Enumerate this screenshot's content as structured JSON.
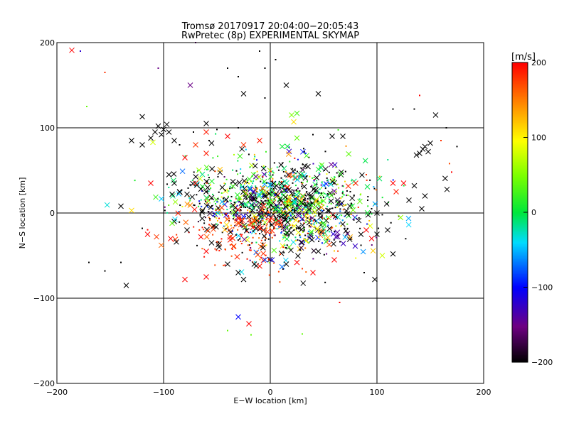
{
  "chart_data": {
    "type": "scatter",
    "title": "Tromsø 20170917 20:04:00−20:05:43",
    "subtitle": "RwPretec (8p) EXPERIMENTAL SKYMAP",
    "xlabel": "E−W location [km]",
    "ylabel": "N−S location [km]",
    "xlim": [
      -200,
      200
    ],
    "ylim": [
      -200,
      200
    ],
    "xticks": [
      -200,
      -100,
      0,
      100,
      200
    ],
    "yticks": [
      -200,
      -100,
      0,
      100,
      200
    ],
    "xtick_labels": [
      "−200",
      "−100",
      "0",
      "100",
      "200"
    ],
    "ytick_labels": [
      "−200",
      "−100",
      "0",
      "100",
      "200"
    ],
    "grid": true,
    "colorbar": {
      "label": "[m/s]",
      "min": -200,
      "max": 200,
      "ticks": [
        -200,
        -100,
        0,
        100,
        200
      ],
      "tick_labels": [
        "−200",
        "−100",
        "0",
        "100",
        "200"
      ],
      "colormap": "rainbow",
      "low_color": "#000000",
      "high_color": "#ff0000"
    },
    "markers": [
      "x",
      "dot"
    ],
    "points": [
      {
        "x": -186,
        "y": 191,
        "v": 200,
        "m": "x"
      },
      {
        "x": -178,
        "y": 190,
        "v": -120,
        "m": "dot"
      },
      {
        "x": -155,
        "y": 165,
        "v": 180,
        "m": "dot"
      },
      {
        "x": -105,
        "y": 170,
        "v": -150,
        "m": "dot"
      },
      {
        "x": -70,
        "y": 200,
        "v": -160,
        "m": "dot"
      },
      {
        "x": -75,
        "y": 150,
        "v": -150,
        "m": "x"
      },
      {
        "x": -40,
        "y": 170,
        "v": -200,
        "m": "dot"
      },
      {
        "x": -30,
        "y": 160,
        "v": -200,
        "m": "dot"
      },
      {
        "x": -25,
        "y": 140,
        "v": -200,
        "m": "x"
      },
      {
        "x": -10,
        "y": 190,
        "v": -200,
        "m": "dot"
      },
      {
        "x": -5,
        "y": 170,
        "v": -200,
        "m": "dot"
      },
      {
        "x": 5,
        "y": 180,
        "v": -200,
        "m": "dot"
      },
      {
        "x": -5,
        "y": 135,
        "v": -200,
        "m": "dot"
      },
      {
        "x": 15,
        "y": 150,
        "v": -200,
        "m": "x"
      },
      {
        "x": 45,
        "y": 140,
        "v": -200,
        "m": "x"
      },
      {
        "x": -172,
        "y": 125,
        "v": 40,
        "m": "dot"
      },
      {
        "x": -120,
        "y": 113,
        "v": -200,
        "m": "x"
      },
      {
        "x": -105,
        "y": 102,
        "v": -200,
        "m": "x"
      },
      {
        "x": -100,
        "y": 98,
        "v": -200,
        "m": "x"
      },
      {
        "x": -95,
        "y": 95,
        "v": -200,
        "m": "x"
      },
      {
        "x": -102,
        "y": 92,
        "v": -200,
        "m": "x"
      },
      {
        "x": -108,
        "y": 95,
        "v": -200,
        "m": "x"
      },
      {
        "x": -97,
        "y": 104,
        "v": -200,
        "m": "x"
      },
      {
        "x": -112,
        "y": 88,
        "v": -200,
        "m": "x"
      },
      {
        "x": -90,
        "y": 85,
        "v": -200,
        "m": "x"
      },
      {
        "x": -85,
        "y": 80,
        "v": -200,
        "m": "dot"
      },
      {
        "x": -120,
        "y": 80,
        "v": -200,
        "m": "x"
      },
      {
        "x": -110,
        "y": 83,
        "v": 80,
        "m": "x"
      },
      {
        "x": -130,
        "y": 85,
        "v": -200,
        "m": "x"
      },
      {
        "x": -60,
        "y": 105,
        "v": -200,
        "m": "x"
      },
      {
        "x": -72,
        "y": 95,
        "v": -200,
        "m": "dot"
      },
      {
        "x": -50,
        "y": 98,
        "v": -200,
        "m": "dot"
      },
      {
        "x": -30,
        "y": 100,
        "v": -200,
        "m": "dot"
      },
      {
        "x": -60,
        "y": 95,
        "v": 190,
        "m": "x"
      },
      {
        "x": -70,
        "y": 80,
        "v": 180,
        "m": "x"
      },
      {
        "x": -80,
        "y": 65,
        "v": 200,
        "m": "x"
      },
      {
        "x": -60,
        "y": 70,
        "v": 190,
        "m": "x"
      },
      {
        "x": -55,
        "y": 82,
        "v": -200,
        "m": "x"
      },
      {
        "x": -40,
        "y": 90,
        "v": 200,
        "m": "x"
      },
      {
        "x": -25,
        "y": 80,
        "v": 180,
        "m": "x"
      },
      {
        "x": -10,
        "y": 85,
        "v": 190,
        "m": "x"
      },
      {
        "x": 20,
        "y": 115,
        "v": 50,
        "m": "x"
      },
      {
        "x": 22,
        "y": 107,
        "v": 110,
        "m": "x"
      },
      {
        "x": 25,
        "y": 117,
        "v": 30,
        "m": "x"
      },
      {
        "x": 25,
        "y": 88,
        "v": 40,
        "m": "x"
      },
      {
        "x": 40,
        "y": 92,
        "v": -200,
        "m": "dot"
      },
      {
        "x": 58,
        "y": 90,
        "v": -200,
        "m": "x"
      },
      {
        "x": 68,
        "y": 90,
        "v": -200,
        "m": "x"
      },
      {
        "x": 115,
        "y": 122,
        "v": -200,
        "m": "dot"
      },
      {
        "x": 135,
        "y": 122,
        "v": -200,
        "m": "dot"
      },
      {
        "x": 155,
        "y": 115,
        "v": -200,
        "m": "x"
      },
      {
        "x": 140,
        "y": 138,
        "v": 200,
        "m": "dot"
      },
      {
        "x": 165,
        "y": 100,
        "v": -200,
        "m": "dot"
      },
      {
        "x": 140,
        "y": 70,
        "v": -200,
        "m": "x"
      },
      {
        "x": 143,
        "y": 75,
        "v": -200,
        "m": "x"
      },
      {
        "x": 137,
        "y": 68,
        "v": -200,
        "m": "x"
      },
      {
        "x": 145,
        "y": 78,
        "v": -200,
        "m": "x"
      },
      {
        "x": 148,
        "y": 72,
        "v": -200,
        "m": "x"
      },
      {
        "x": 150,
        "y": 82,
        "v": -200,
        "m": "x"
      },
      {
        "x": 160,
        "y": 85,
        "v": 180,
        "m": "dot"
      },
      {
        "x": 175,
        "y": 78,
        "v": -200,
        "m": "dot"
      },
      {
        "x": 168,
        "y": 58,
        "v": 170,
        "m": "dot"
      },
      {
        "x": 170,
        "y": 48,
        "v": 200,
        "m": "dot"
      },
      {
        "x": 115,
        "y": 35,
        "v": 200,
        "m": "x"
      },
      {
        "x": 125,
        "y": 35,
        "v": 200,
        "m": "x"
      },
      {
        "x": 118,
        "y": 25,
        "v": 190,
        "m": "x"
      },
      {
        "x": 135,
        "y": 32,
        "v": -200,
        "m": "x"
      },
      {
        "x": 145,
        "y": 20,
        "v": -200,
        "m": "x"
      },
      {
        "x": 130,
        "y": 15,
        "v": -200,
        "m": "x"
      },
      {
        "x": 142,
        "y": 5,
        "v": -200,
        "m": "x"
      },
      {
        "x": 100,
        "y": 0,
        "v": -200,
        "m": "x"
      },
      {
        "x": 105,
        "y": -2,
        "v": -200,
        "m": "dot"
      },
      {
        "x": 95,
        "y": 5,
        "v": -200,
        "m": "dot"
      },
      {
        "x": 90,
        "y": 45,
        "v": 180,
        "m": "dot"
      },
      {
        "x": 80,
        "y": 35,
        "v": 190,
        "m": "x"
      },
      {
        "x": 75,
        "y": 25,
        "v": -200,
        "m": "dot"
      },
      {
        "x": 90,
        "y": -20,
        "v": 200,
        "m": "x"
      },
      {
        "x": 100,
        "y": -25,
        "v": -200,
        "m": "x"
      },
      {
        "x": 95,
        "y": -30,
        "v": 200,
        "m": "x"
      },
      {
        "x": 85,
        "y": -25,
        "v": -200,
        "m": "x"
      },
      {
        "x": 110,
        "y": -20,
        "v": -200,
        "m": "x"
      },
      {
        "x": 105,
        "y": -50,
        "v": 80,
        "m": "x"
      },
      {
        "x": 115,
        "y": -48,
        "v": -200,
        "m": "x"
      },
      {
        "x": 98,
        "y": -78,
        "v": -200,
        "m": "x"
      },
      {
        "x": 88,
        "y": -70,
        "v": -200,
        "m": "dot"
      },
      {
        "x": 60,
        "y": -55,
        "v": 200,
        "m": "x"
      },
      {
        "x": 65,
        "y": -105,
        "v": 200,
        "m": "dot"
      },
      {
        "x": -112,
        "y": 35,
        "v": 200,
        "m": "x"
      },
      {
        "x": -95,
        "y": 45,
        "v": -200,
        "m": "x"
      },
      {
        "x": -90,
        "y": 35,
        "v": -200,
        "m": "x"
      },
      {
        "x": -92,
        "y": 22,
        "v": -200,
        "m": "x"
      },
      {
        "x": -85,
        "y": 25,
        "v": -200,
        "m": "x"
      },
      {
        "x": -78,
        "y": 22,
        "v": -200,
        "m": "x"
      },
      {
        "x": -70,
        "y": 35,
        "v": 190,
        "m": "x"
      },
      {
        "x": -65,
        "y": 28,
        "v": -200,
        "m": "x"
      },
      {
        "x": -55,
        "y": 18,
        "v": -200,
        "m": "x"
      },
      {
        "x": -45,
        "y": 30,
        "v": -200,
        "m": "x"
      },
      {
        "x": -140,
        "y": 8,
        "v": -200,
        "m": "x"
      },
      {
        "x": -130,
        "y": 3,
        "v": 110,
        "m": "x"
      },
      {
        "x": -115,
        "y": -25,
        "v": 200,
        "m": "x"
      },
      {
        "x": -120,
        "y": -18,
        "v": -200,
        "m": "dot"
      },
      {
        "x": -90,
        "y": -10,
        "v": -200,
        "m": "x"
      },
      {
        "x": -92,
        "y": -12,
        "v": 40,
        "m": "x"
      },
      {
        "x": -78,
        "y": -20,
        "v": -200,
        "m": "x"
      },
      {
        "x": -65,
        "y": -28,
        "v": 200,
        "m": "x"
      },
      {
        "x": -55,
        "y": -35,
        "v": -200,
        "m": "x"
      },
      {
        "x": -48,
        "y": -40,
        "v": -200,
        "m": "x"
      },
      {
        "x": -60,
        "y": -45,
        "v": 200,
        "m": "x"
      },
      {
        "x": -80,
        "y": -78,
        "v": 200,
        "m": "x"
      },
      {
        "x": -60,
        "y": -75,
        "v": 200,
        "m": "x"
      },
      {
        "x": -40,
        "y": -60,
        "v": -200,
        "m": "x"
      },
      {
        "x": -30,
        "y": -70,
        "v": -200,
        "m": "x"
      },
      {
        "x": -25,
        "y": -78,
        "v": -200,
        "m": "x"
      },
      {
        "x": -15,
        "y": -60,
        "v": -200,
        "m": "x"
      },
      {
        "x": -5,
        "y": -55,
        "v": -80,
        "m": "x"
      },
      {
        "x": -170,
        "y": -58,
        "v": -200,
        "m": "dot"
      },
      {
        "x": -155,
        "y": -68,
        "v": -200,
        "m": "dot"
      },
      {
        "x": -135,
        "y": -85,
        "v": -200,
        "m": "x"
      },
      {
        "x": -140,
        "y": -58,
        "v": -200,
        "m": "dot"
      },
      {
        "x": 15,
        "y": -60,
        "v": -200,
        "m": "x"
      },
      {
        "x": 25,
        "y": -58,
        "v": 200,
        "m": "x"
      },
      {
        "x": 40,
        "y": -70,
        "v": 200,
        "m": "x"
      },
      {
        "x": 45,
        "y": -45,
        "v": -200,
        "m": "x"
      },
      {
        "x": -30,
        "y": -122,
        "v": -100,
        "m": "x"
      },
      {
        "x": -20,
        "y": -130,
        "v": 200,
        "m": "x"
      },
      {
        "x": -40,
        "y": -138,
        "v": 40,
        "m": "dot"
      },
      {
        "x": 30,
        "y": -142,
        "v": 40,
        "m": "dot"
      },
      {
        "x": -18,
        "y": -143,
        "v": 40,
        "m": "dot"
      }
    ],
    "cluster": {
      "n": 1400,
      "seed": 17,
      "center_x": 5,
      "center_y": 5,
      "spread_x": 42,
      "spread_y": 28
    }
  }
}
